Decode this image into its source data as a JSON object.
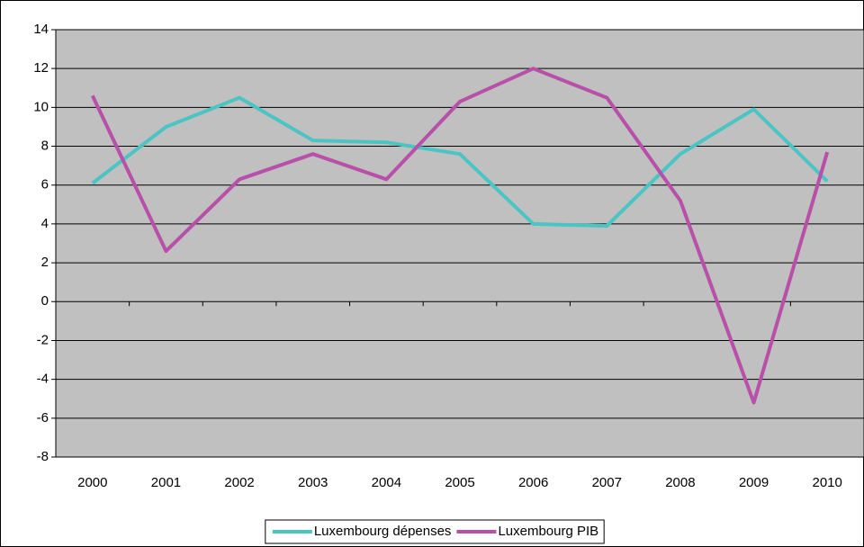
{
  "chart_data": {
    "type": "line",
    "categories": [
      "2000",
      "2001",
      "2002",
      "2003",
      "2004",
      "2005",
      "2006",
      "2007",
      "2008",
      "2009",
      "2010"
    ],
    "series": [
      {
        "name": "Luxembourg dépenses",
        "color": "#4bc4c4",
        "values": [
          6.1,
          9.0,
          10.5,
          8.3,
          8.2,
          7.6,
          4.0,
          3.9,
          7.6,
          9.9,
          6.2
        ]
      },
      {
        "name": "Luxembourg PIB",
        "color": "#b84fa8",
        "values": [
          10.6,
          2.6,
          6.3,
          7.6,
          6.3,
          10.3,
          12.0,
          10.5,
          5.2,
          -5.2,
          7.7
        ]
      }
    ],
    "ylim": [
      -8,
      14
    ],
    "yticks": [
      -8,
      -6,
      -4,
      -2,
      0,
      2,
      4,
      6,
      8,
      10,
      12,
      14
    ],
    "grid": true,
    "plot_background": "#c0c0c0",
    "legend": "bottom"
  }
}
